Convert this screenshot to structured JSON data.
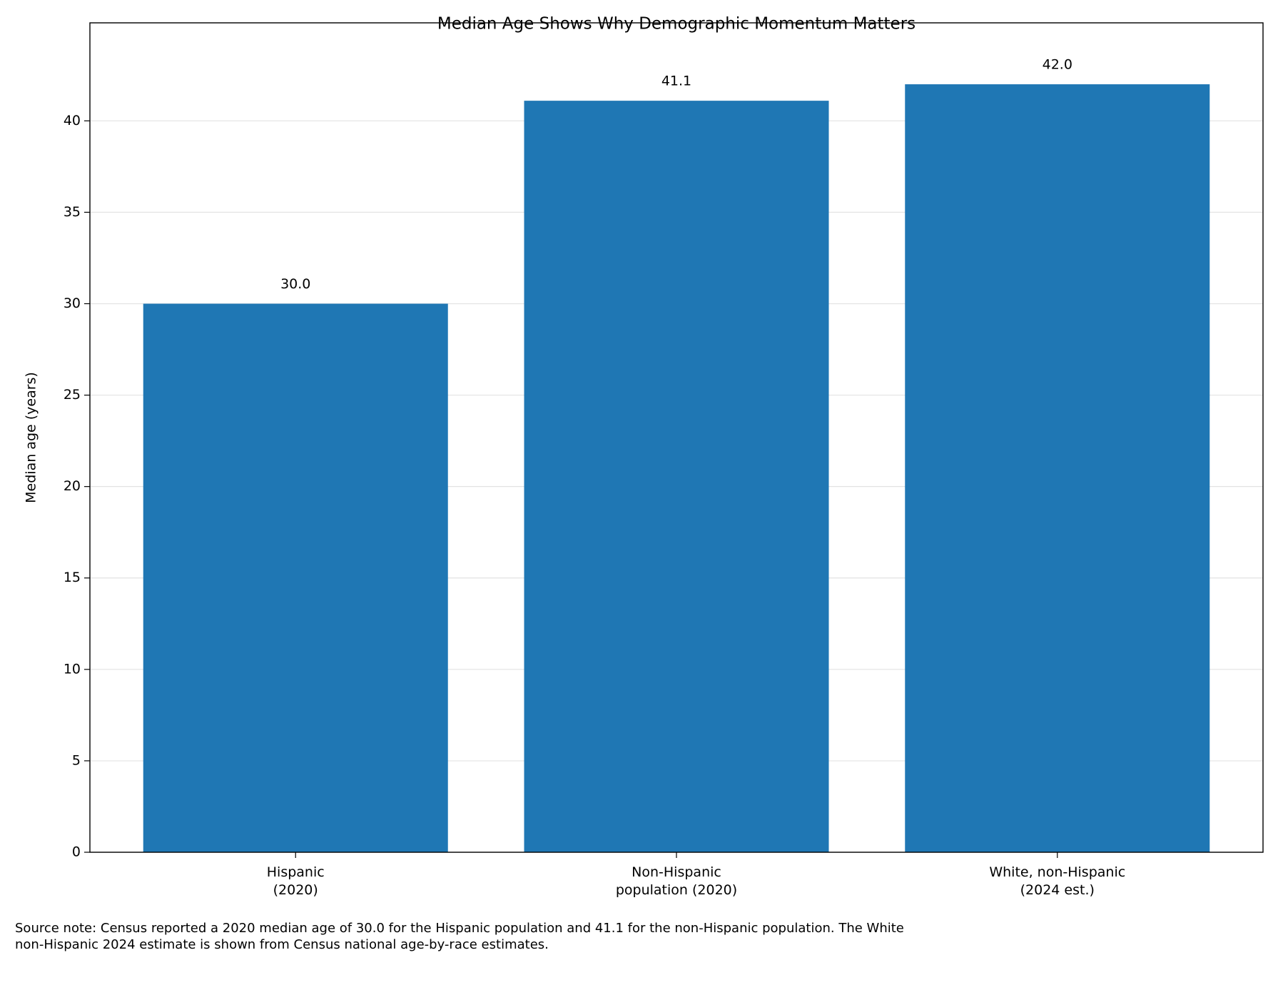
{
  "chart_data": {
    "type": "bar",
    "title": "Median Age Shows Why Demographic Momentum Matters",
    "y_label": "Median age (years)",
    "categories": [
      "Hispanic\n(2020)",
      "Non-Hispanic\npopulation (2020)",
      "White, non-Hispanic\n(2024 est.)"
    ],
    "values": [
      30.0,
      41.1,
      42.0
    ],
    "value_labels": [
      "30.0",
      "41.1",
      "42.0"
    ],
    "color": "#1f77b4",
    "ylim": [
      0,
      45.36
    ],
    "yticks": [
      0,
      5,
      10,
      15,
      20,
      25,
      30,
      35,
      40
    ],
    "grid": true,
    "note": "Source note: Census reported a 2020 median age of 30.0 for the Hispanic population and 41.1 for the non-Hispanic population. The White non-Hispanic 2024 estimate is shown from Census national age-by-race estimates."
  }
}
